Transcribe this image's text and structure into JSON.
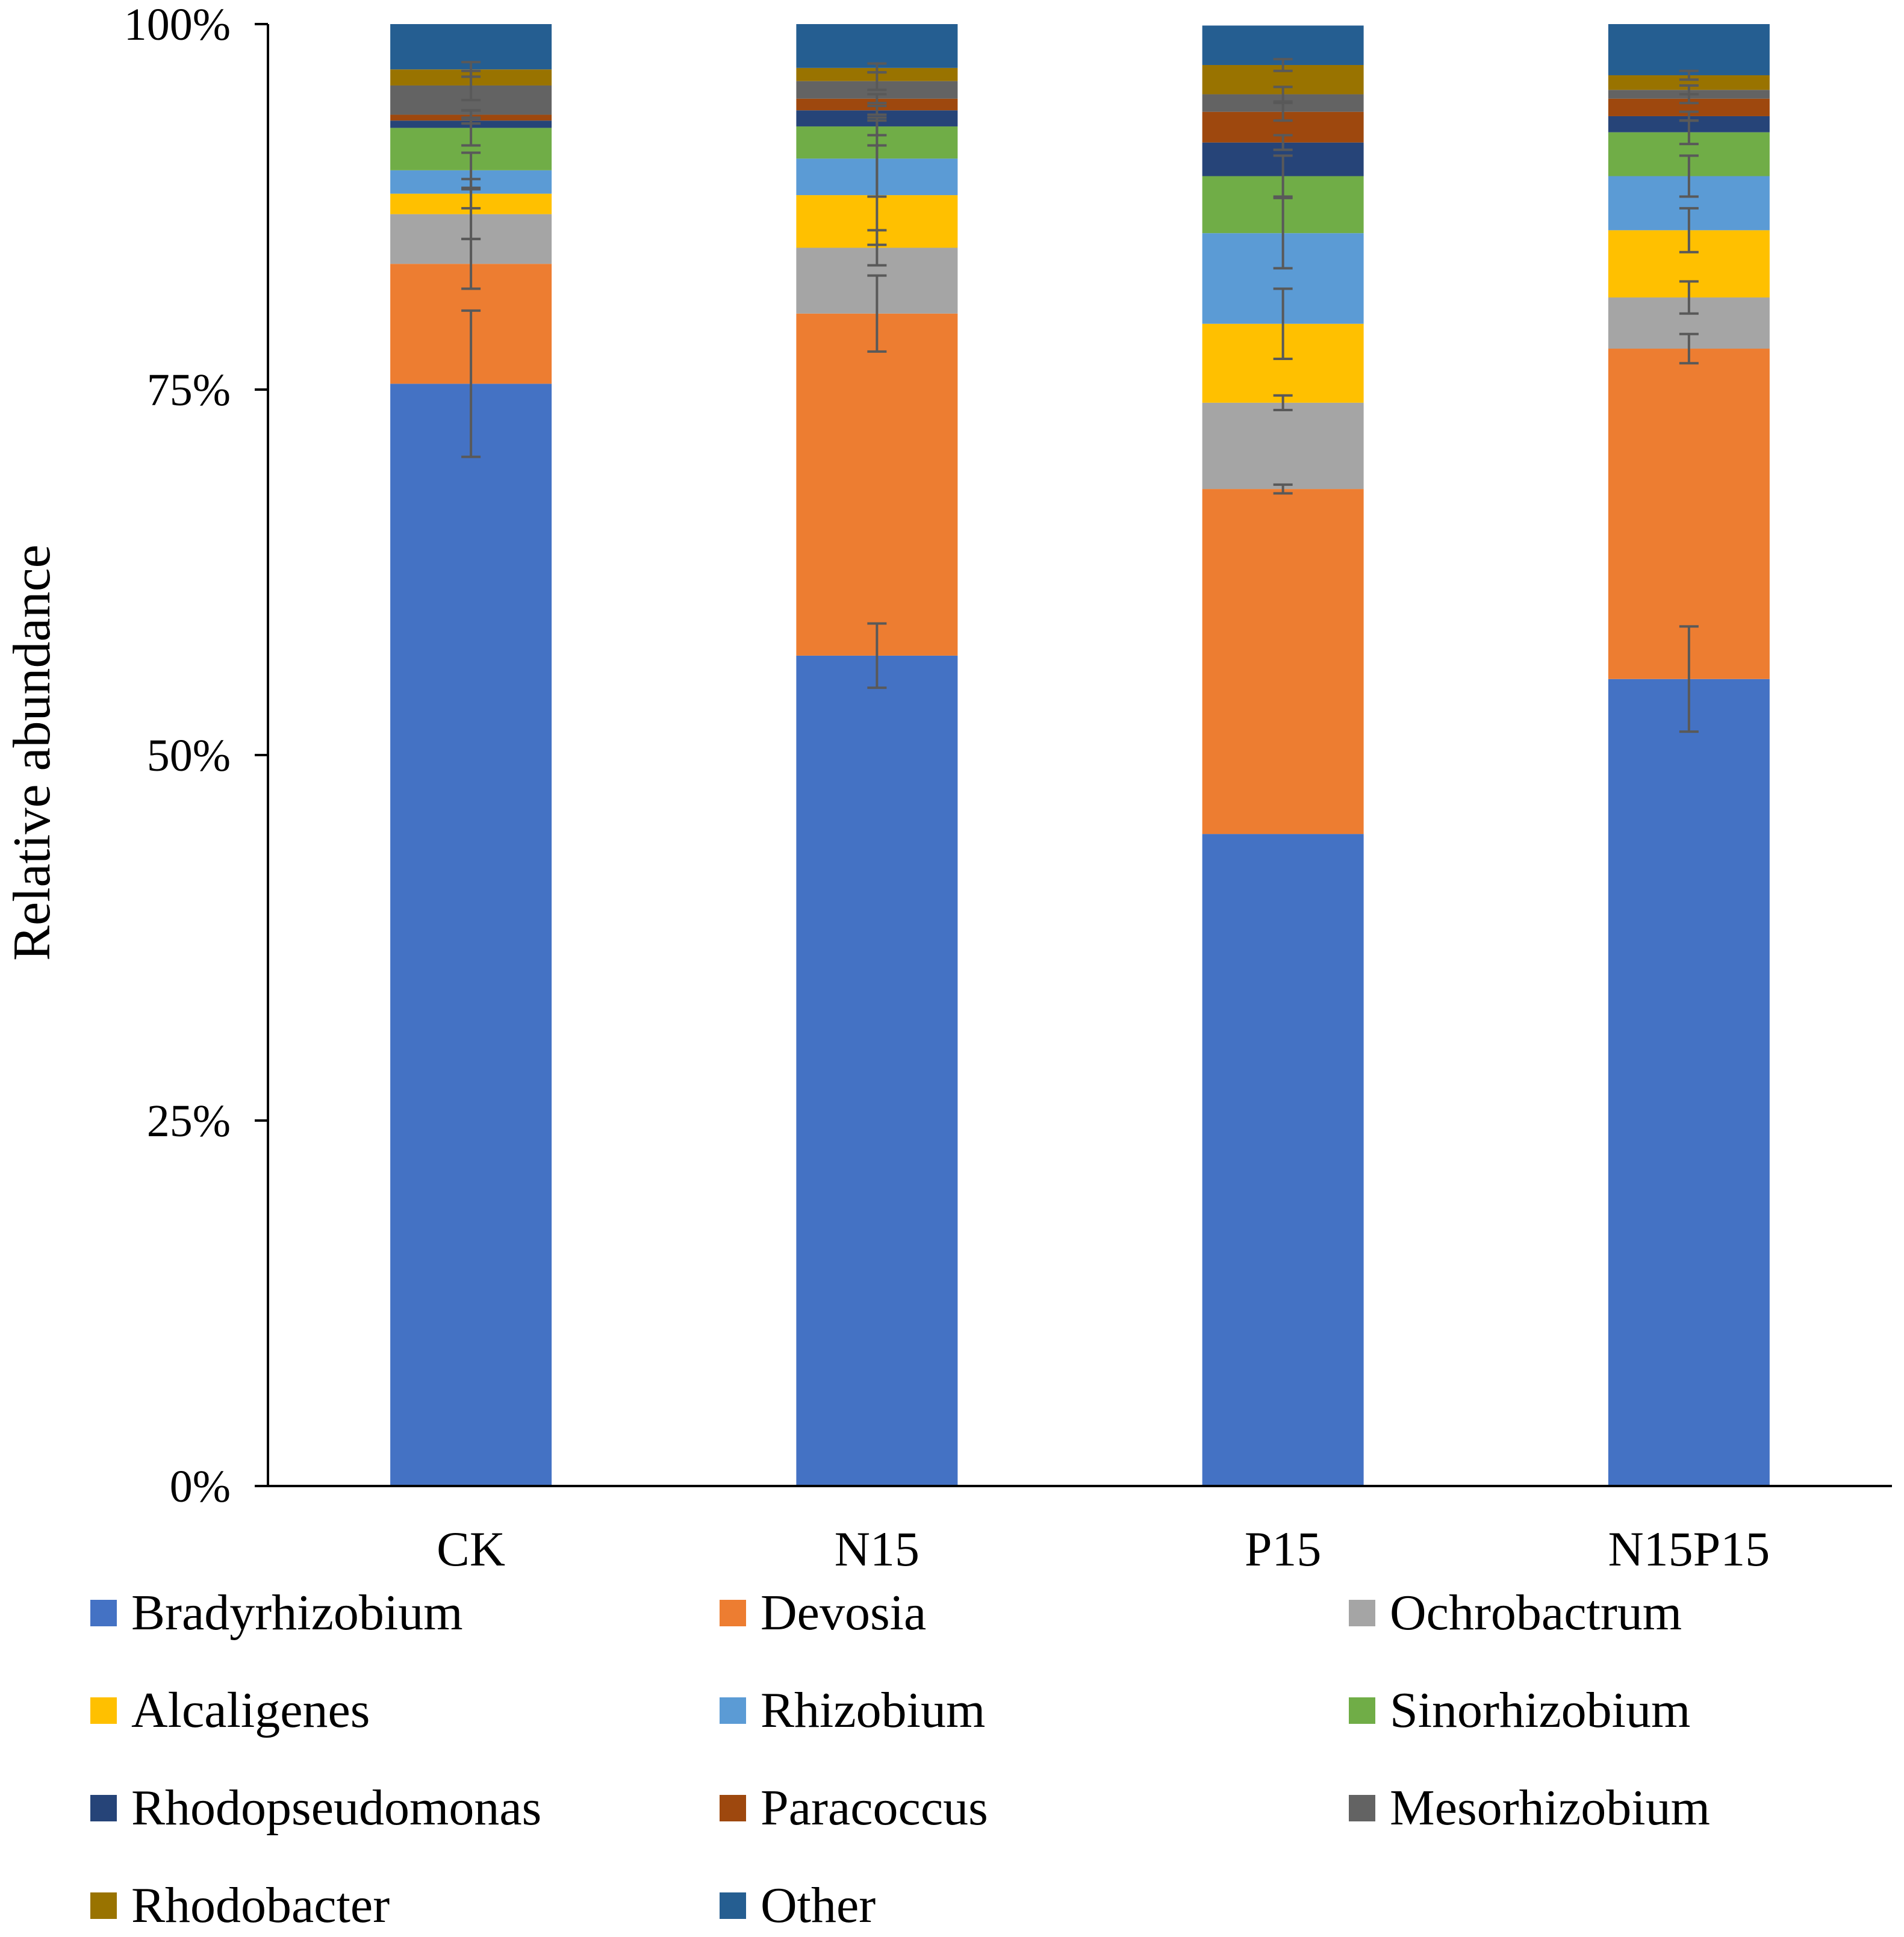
{
  "chart_data": {
    "type": "bar",
    "stacked": true,
    "percent": true,
    "ylabel": "Relative abundance",
    "xlabel": "",
    "ylim": [
      0,
      100
    ],
    "yticks": [
      "0%",
      "25%",
      "50%",
      "75%",
      "100%"
    ],
    "categories": [
      "CK",
      "N15",
      "P15",
      "N15P15"
    ],
    "series": [
      {
        "name": "Bradyrhizobium",
        "color": "#4472C4",
        "values": [
          75.4,
          56.8,
          44.6,
          55.2
        ],
        "errors": [
          5.0,
          2.2,
          0.0,
          3.6
        ]
      },
      {
        "name": "Devosia",
        "color": "#ED7D31",
        "values": [
          8.2,
          23.4,
          23.6,
          22.6
        ],
        "errors": [
          1.7,
          2.6,
          0.3,
          1.0
        ]
      },
      {
        "name": "Ochrobactrum",
        "color": "#A5A5A5",
        "values": [
          3.4,
          4.5,
          5.9,
          3.5
        ],
        "errors": [
          1.7,
          1.2,
          0.5,
          1.1
        ]
      },
      {
        "name": "Alcaligenes",
        "color": "#FFC000",
        "values": [
          1.4,
          3.6,
          5.4,
          4.6
        ],
        "errors": [
          1.0,
          3.4,
          2.4,
          1.5
        ]
      },
      {
        "name": "Rhizobium",
        "color": "#5B9BD5",
        "values": [
          1.6,
          2.5,
          6.2,
          3.7
        ],
        "errors": [
          1.2,
          2.6,
          2.4,
          1.4
        ]
      },
      {
        "name": "Sinorhizobium",
        "color": "#70AD47",
        "values": [
          2.9,
          2.2,
          3.9,
          3.0
        ],
        "errors": [
          1.2,
          0.6,
          1.4,
          0.8
        ]
      },
      {
        "name": "Rhodopseudomonas",
        "color": "#264478",
        "values": [
          0.5,
          1.1,
          2.3,
          1.1
        ],
        "errors": [
          0.2,
          0.3,
          0.5,
          0.3
        ]
      },
      {
        "name": "Paracoccus",
        "color": "#9E480E",
        "values": [
          0.4,
          0.8,
          2.1,
          1.2
        ],
        "errors": [
          0.3,
          0.3,
          0.6,
          0.3
        ]
      },
      {
        "name": "Mesorhizobium",
        "color": "#636363",
        "values": [
          2.0,
          1.2,
          1.2,
          0.6
        ],
        "errors": [
          1.0,
          0.6,
          0.5,
          0.3
        ]
      },
      {
        "name": "Rhodobacter",
        "color": "#997300",
        "values": [
          1.1,
          0.9,
          2.0,
          1.0
        ],
        "errors": [
          0.5,
          0.3,
          0.4,
          0.3
        ]
      },
      {
        "name": "Other",
        "color": "#255E91",
        "values": [
          3.1,
          3.0,
          2.7,
          3.5
        ],
        "errors": [
          0,
          0,
          0,
          0
        ]
      }
    ]
  }
}
